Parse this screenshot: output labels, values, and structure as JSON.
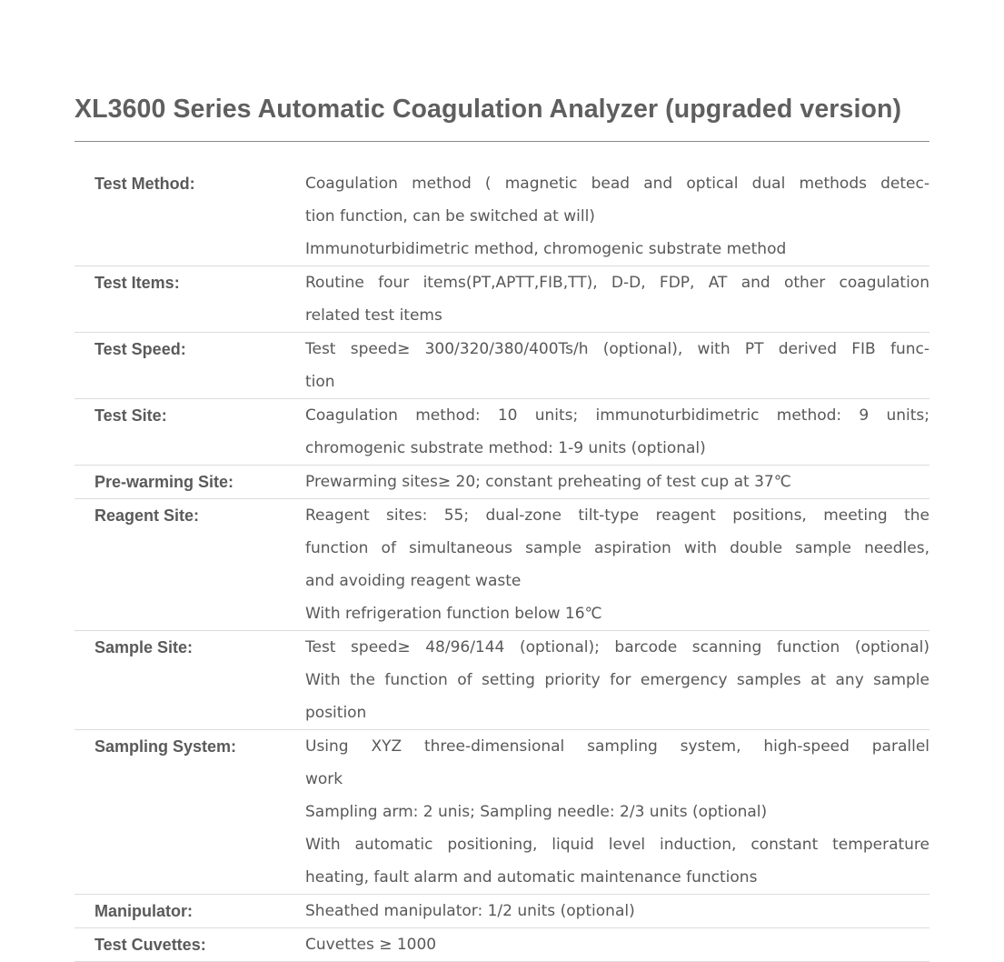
{
  "title": "XL3600 Series Automatic Coagulation Analyzer (upgraded version)",
  "rows": [
    {
      "label": "Test Method:",
      "lines": [
        {
          "text": "Coagulation method ( magnetic bead and optical dual methods detec-",
          "justify": true
        },
        {
          "text": "tion function, can be switched at will)",
          "justify": false
        },
        {
          "text": "Immunoturbidimetric method, chromogenic substrate method",
          "justify": false
        }
      ]
    },
    {
      "label": "Test Items:",
      "lines": [
        {
          "text": "Routine four items(PT,APTT,FIB,TT), D-D, FDP, AT and other coagulation",
          "justify": true
        },
        {
          "text": "related test items",
          "justify": false
        }
      ]
    },
    {
      "label": "Test Speed:",
      "lines": [
        {
          "text": "Test speed≥ 300/320/380/400Ts/h (optional), with PT derived FIB func-",
          "justify": true
        },
        {
          "text": "tion",
          "justify": false
        }
      ]
    },
    {
      "label": "Test Site:",
      "lines": [
        {
          "text": "Coagulation method: 10 units; immunoturbidimetric method: 9 units;",
          "justify": true
        },
        {
          "text": "chromogenic substrate method: 1-9 units (optional)",
          "justify": false
        }
      ]
    },
    {
      "label": "Pre-warming Site:",
      "lines": [
        {
          "text": "Prewarming sites≥ 20; constant preheating of test cup at 37℃",
          "justify": false
        }
      ]
    },
    {
      "label": "Reagent Site:",
      "lines": [
        {
          "text": "Reagent sites: 55; dual-zone tilt-type reagent positions, meeting the",
          "justify": true
        },
        {
          "text": "function of simultaneous sample aspiration with double sample needles,",
          "justify": true
        },
        {
          "text": "and avoiding reagent waste",
          "justify": false
        },
        {
          "text": "With refrigeration function below 16℃",
          "justify": false
        }
      ]
    },
    {
      "label": "Sample Site:",
      "lines": [
        {
          "text": "Test speed≥ 48/96/144 (optional); barcode scanning function (optional)",
          "justify": true
        },
        {
          "text": "With the function of setting priority for emergency samples at any sample",
          "justify": true
        },
        {
          "text": "position",
          "justify": false
        }
      ]
    },
    {
      "label": "Sampling System:",
      "lines": [
        {
          "text": "Using XYZ three-dimensional sampling system, high-speed parallel",
          "justify": true
        },
        {
          "text": "work",
          "justify": false
        },
        {
          "text": "Sampling arm: 2 unis; Sampling needle: 2/3 units (optional)",
          "justify": false
        },
        {
          "text": "With automatic positioning, liquid level induction, constant temperature",
          "justify": true
        },
        {
          "text": "heating, fault alarm and automatic maintenance functions",
          "justify": false
        }
      ]
    },
    {
      "label": "Manipulator:",
      "lines": [
        {
          "text": "Sheathed manipulator: 1/2 units (optional)",
          "justify": false
        }
      ]
    },
    {
      "label": "Test Cuvettes:",
      "lines": [
        {
          "text": "Cuvettes ≥ 1000",
          "justify": false
        }
      ]
    }
  ]
}
